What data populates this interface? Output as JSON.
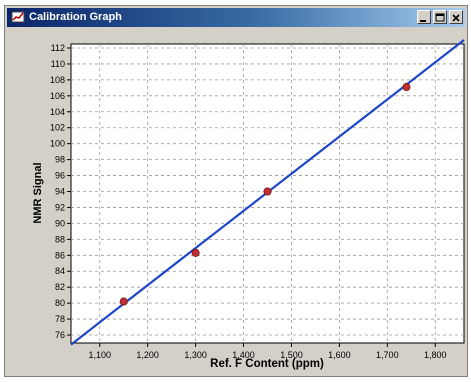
{
  "window": {
    "title": "Calibration Graph"
  },
  "chart_data": {
    "type": "scatter",
    "title": "",
    "xlabel": "Ref. F Content (ppm)",
    "ylabel": "NMR Signal",
    "xlim": [
      1040,
      1860
    ],
    "ylim": [
      75,
      112.5
    ],
    "xticks": [
      1100,
      1200,
      1300,
      1400,
      1500,
      1600,
      1700,
      1800
    ],
    "xtick_labels": [
      "1,100",
      "1,200",
      "1,300",
      "1,400",
      "1,500",
      "1,600",
      "1,700",
      "1,800"
    ],
    "yticks": [
      76,
      78,
      80,
      82,
      84,
      86,
      88,
      90,
      92,
      94,
      96,
      98,
      100,
      102,
      104,
      106,
      108,
      110,
      112
    ],
    "grid": true,
    "series": [
      {
        "type": "scatter",
        "color": "#c03030",
        "x": [
          1150,
          1300,
          1450,
          1740
        ],
        "y": [
          80.2,
          86.3,
          94.0,
          107.1
        ]
      },
      {
        "type": "line",
        "color": "#1e46c8",
        "x": [
          1040,
          1860
        ],
        "y": [
          74.8,
          113.0
        ]
      }
    ]
  }
}
